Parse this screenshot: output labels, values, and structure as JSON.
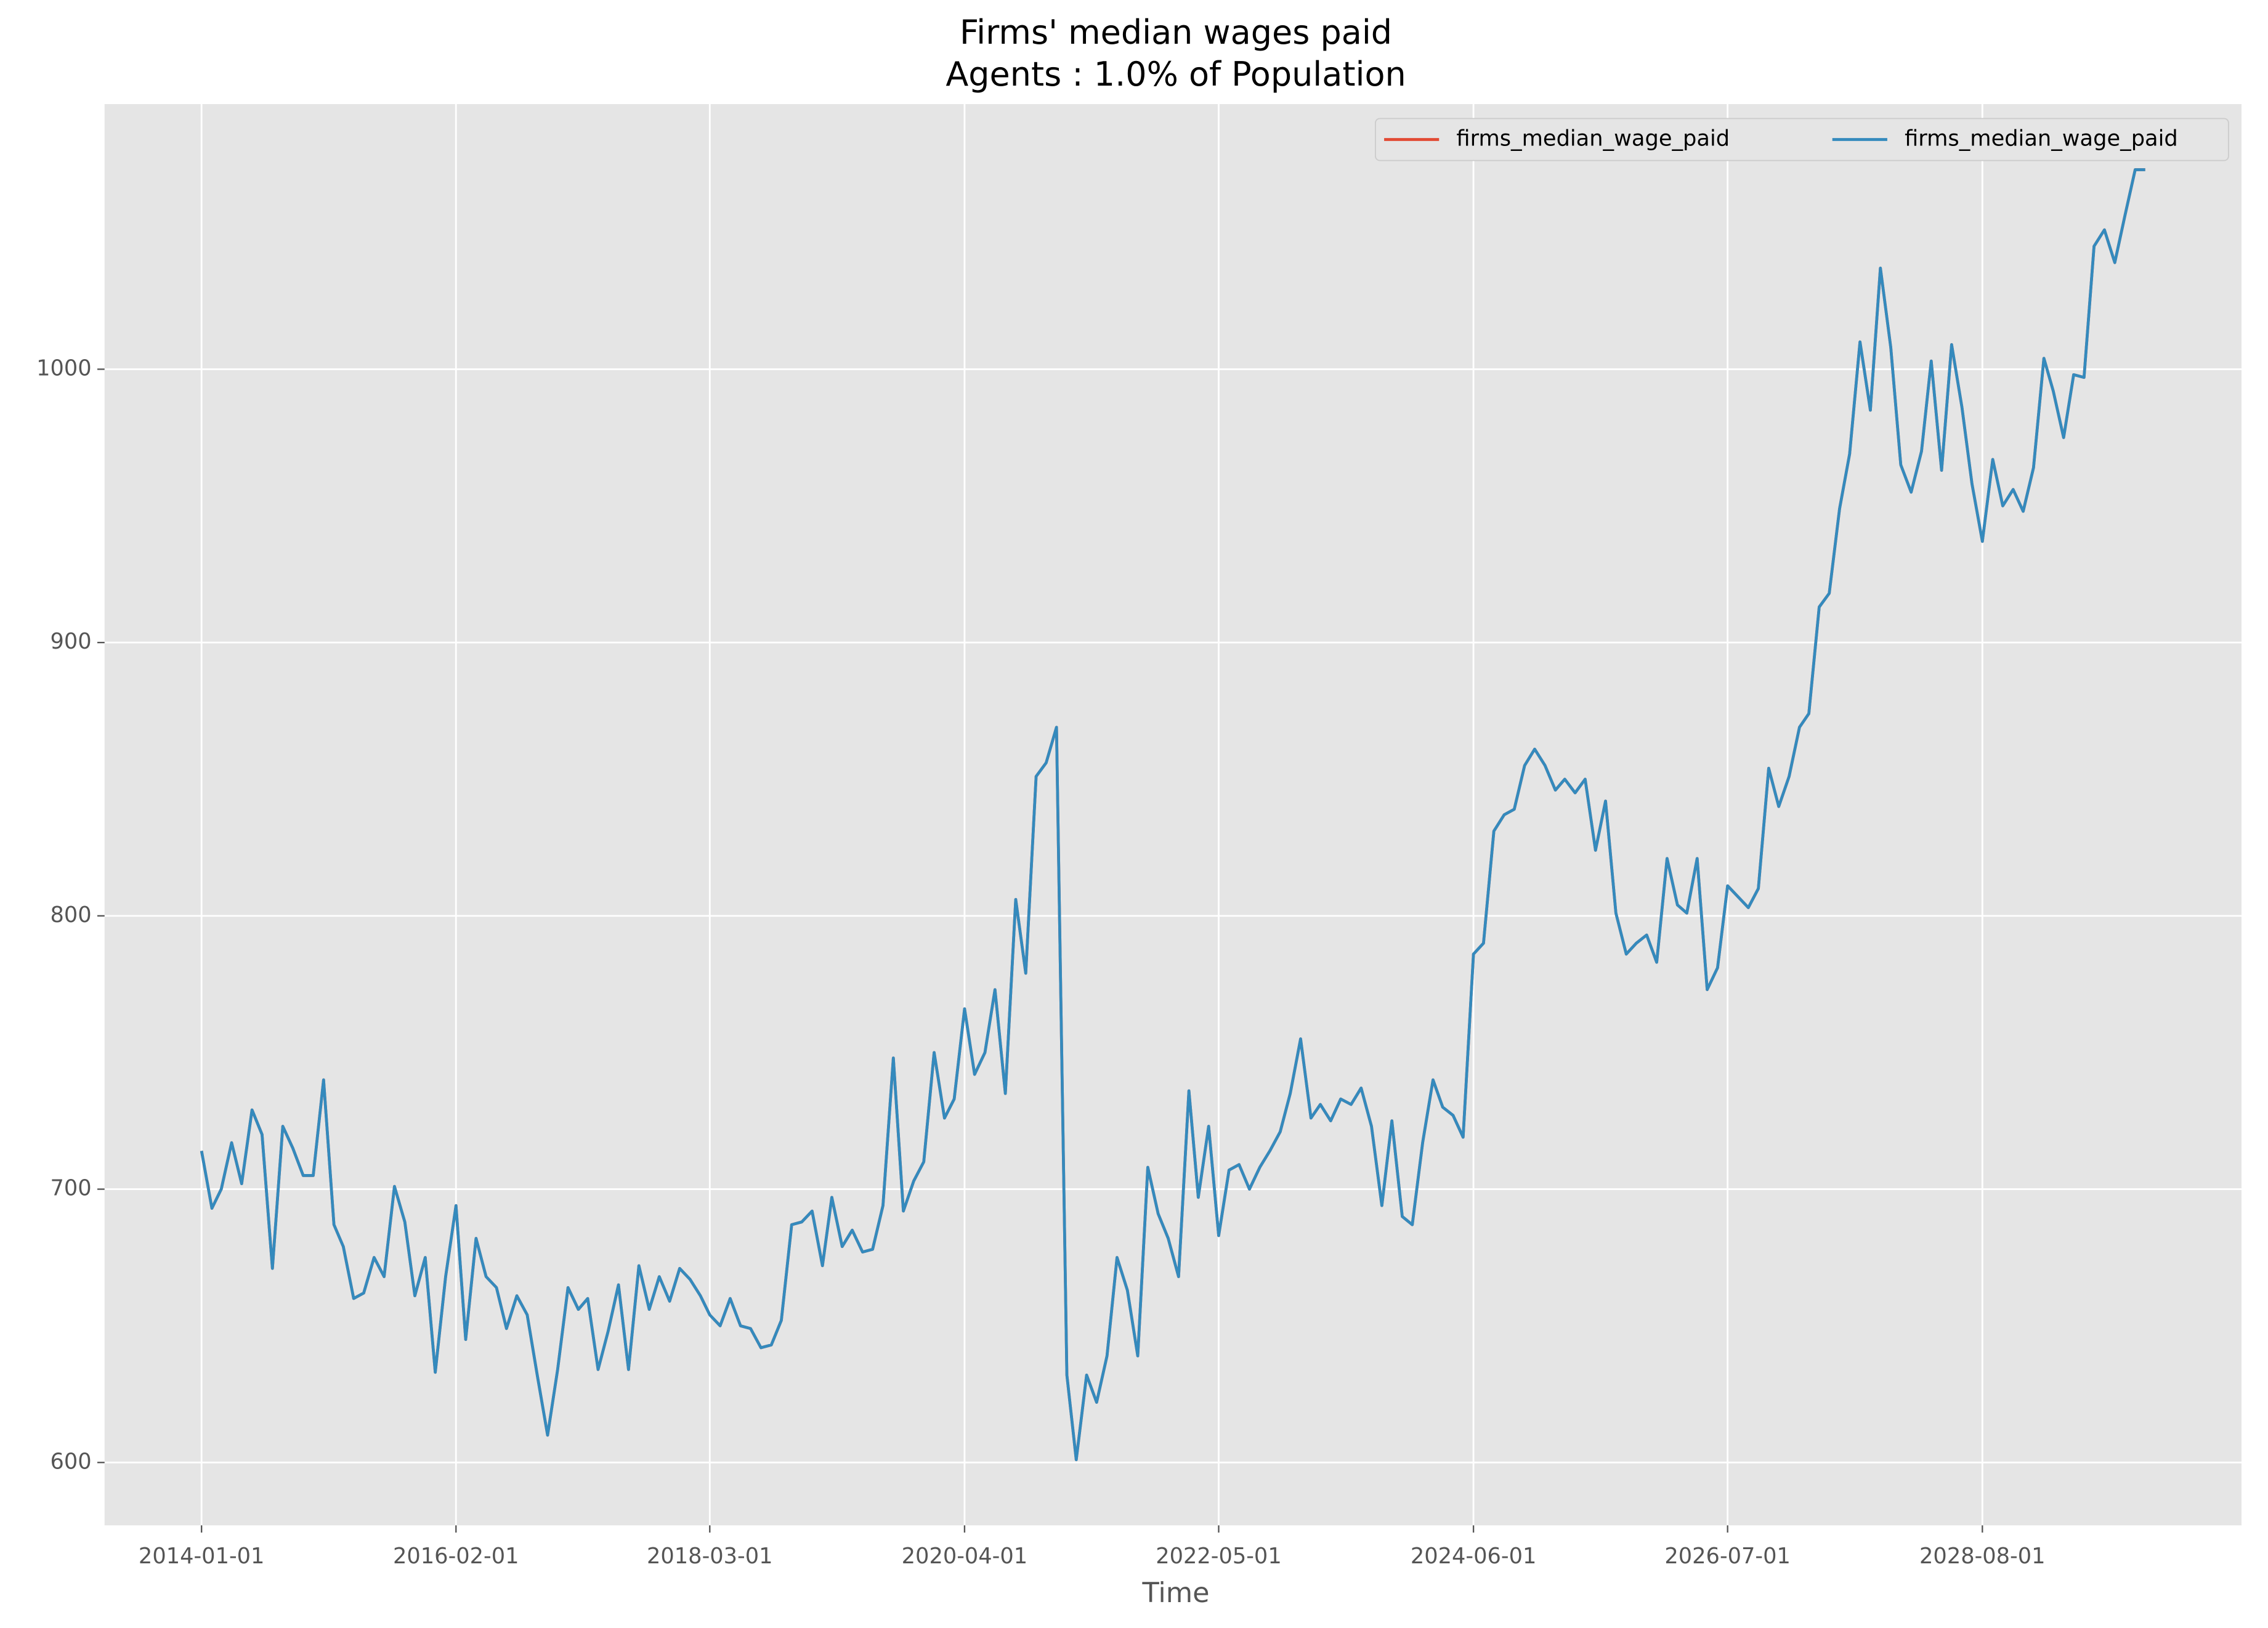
{
  "chart_data": {
    "type": "line",
    "title": "Firms' median wages paid",
    "subtitle": "Agents : 1.0% of Population",
    "x_label": "Time",
    "grid": true,
    "legend": "upper right",
    "xlim": [
      "2013-03-17",
      "2030-09-15"
    ],
    "xticks": [
      "2014-01-01",
      "2016-02-01",
      "2018-03-01",
      "2020-04-01",
      "2022-05-01",
      "2024-06-01",
      "2026-07-01",
      "2028-08-01"
    ],
    "ylim": [
      577,
      1097
    ],
    "yticks": [
      600,
      700,
      800,
      900,
      1000
    ],
    "x": [
      "2014-01-01",
      "2014-02-01",
      "2014-03-01",
      "2014-04-01",
      "2014-05-01",
      "2014-06-01",
      "2014-07-01",
      "2014-08-01",
      "2014-09-01",
      "2014-10-01",
      "2014-11-01",
      "2014-12-01",
      "2015-01-01",
      "2015-02-01",
      "2015-03-01",
      "2015-04-01",
      "2015-05-01",
      "2015-06-01",
      "2015-07-01",
      "2015-08-01",
      "2015-09-01",
      "2015-10-01",
      "2015-11-01",
      "2015-12-01",
      "2016-01-01",
      "2016-02-01",
      "2016-03-01",
      "2016-04-01",
      "2016-05-01",
      "2016-06-01",
      "2016-07-01",
      "2016-08-01",
      "2016-09-01",
      "2016-10-01",
      "2016-11-01",
      "2016-12-01",
      "2017-01-01",
      "2017-02-01",
      "2017-03-01",
      "2017-04-01",
      "2017-05-01",
      "2017-06-01",
      "2017-07-01",
      "2017-08-01",
      "2017-09-01",
      "2017-10-01",
      "2017-11-01",
      "2017-12-01",
      "2018-01-01",
      "2018-02-01",
      "2018-03-01",
      "2018-04-01",
      "2018-05-01",
      "2018-06-01",
      "2018-07-01",
      "2018-08-01",
      "2018-09-01",
      "2018-10-01",
      "2018-11-01",
      "2018-12-01",
      "2019-01-01",
      "2019-02-01",
      "2019-03-01",
      "2019-04-01",
      "2019-05-01",
      "2019-06-01",
      "2019-07-01",
      "2019-08-01",
      "2019-09-01",
      "2019-10-01",
      "2019-11-01",
      "2019-12-01",
      "2020-01-01",
      "2020-02-01",
      "2020-03-01",
      "2020-04-01",
      "2020-05-01",
      "2020-06-01",
      "2020-07-01",
      "2020-08-01",
      "2020-09-01",
      "2020-10-01",
      "2020-11-01",
      "2020-12-01",
      "2021-01-01",
      "2021-02-01",
      "2021-03-01",
      "2021-04-01",
      "2021-05-01",
      "2021-06-01",
      "2021-07-01",
      "2021-08-01",
      "2021-09-01",
      "2021-10-01",
      "2021-11-01",
      "2021-12-01",
      "2022-01-01",
      "2022-02-01",
      "2022-03-01",
      "2022-04-01",
      "2022-05-01",
      "2022-06-01",
      "2022-07-01",
      "2022-08-01",
      "2022-09-01",
      "2022-10-01",
      "2022-11-01",
      "2022-12-01",
      "2023-01-01",
      "2023-02-01",
      "2023-03-01",
      "2023-04-01",
      "2023-05-01",
      "2023-06-01",
      "2023-07-01",
      "2023-08-01",
      "2023-09-01",
      "2023-10-01",
      "2023-11-01",
      "2023-12-01",
      "2024-01-01",
      "2024-02-01",
      "2024-03-01",
      "2024-04-01",
      "2024-05-01",
      "2024-06-01",
      "2024-07-01",
      "2024-08-01",
      "2024-09-01",
      "2024-10-01",
      "2024-11-01",
      "2024-12-01",
      "2025-01-01",
      "2025-02-01",
      "2025-03-01",
      "2025-04-01",
      "2025-05-01",
      "2025-06-01",
      "2025-07-01",
      "2025-08-01",
      "2025-09-01",
      "2025-10-01",
      "2025-11-01",
      "2025-12-01",
      "2026-01-01",
      "2026-02-01",
      "2026-03-01",
      "2026-04-01",
      "2026-05-01",
      "2026-06-01",
      "2026-07-01",
      "2026-08-01",
      "2026-09-01",
      "2026-10-01",
      "2026-11-01",
      "2026-12-01",
      "2027-01-01",
      "2027-02-01",
      "2027-03-01",
      "2027-04-01",
      "2027-05-01",
      "2027-06-01",
      "2027-07-01",
      "2027-08-01",
      "2027-09-01",
      "2027-10-01",
      "2027-11-01",
      "2027-12-01",
      "2028-01-01",
      "2028-02-01",
      "2028-03-01",
      "2028-04-01",
      "2028-05-01",
      "2028-06-01",
      "2028-07-01",
      "2028-08-01",
      "2028-09-01",
      "2028-10-01",
      "2028-11-01",
      "2028-12-01",
      "2029-01-01",
      "2029-02-01",
      "2029-03-01",
      "2029-04-01",
      "2029-05-01",
      "2029-06-01",
      "2029-07-01",
      "2029-08-01",
      "2029-09-01",
      "2029-10-01",
      "2029-11-01",
      "2029-12-01"
    ],
    "series": [
      {
        "name": "firms_median_wage_paid",
        "color": "#e24a33",
        "values": [
          714,
          693,
          700,
          717,
          702,
          729,
          720,
          671,
          723,
          715,
          705,
          705,
          740,
          687,
          679,
          660,
          662,
          675,
          668,
          701,
          688,
          661,
          675,
          633,
          668,
          694,
          645,
          682,
          668,
          664,
          649,
          661,
          654,
          632,
          610,
          634,
          664,
          656,
          660,
          634,
          648,
          665,
          634,
          672,
          656,
          668,
          659,
          671,
          667,
          661,
          654,
          650,
          660,
          650,
          649,
          642,
          643,
          652,
          687,
          688,
          692,
          672,
          697,
          679,
          685,
          677,
          678,
          694,
          748,
          692,
          703,
          710,
          750,
          726,
          733,
          766,
          742,
          750,
          773,
          735,
          806,
          779,
          851,
          856,
          869,
          632,
          601,
          632,
          622,
          639,
          675,
          663,
          639,
          708,
          691,
          682,
          668,
          736,
          697,
          723,
          683,
          707,
          709,
          700,
          708,
          714,
          721,
          735,
          755,
          726,
          731,
          725,
          733,
          731,
          737,
          723,
          694,
          725,
          690,
          687,
          717,
          740,
          730,
          727,
          719,
          786,
          790,
          831,
          837,
          839,
          855,
          861,
          855,
          846,
          850,
          845,
          850,
          824,
          842,
          801,
          786,
          790,
          793,
          783,
          821,
          804,
          801,
          821,
          773,
          781,
          811,
          807,
          803,
          810,
          854,
          840,
          851,
          869,
          874,
          913,
          918,
          949,
          969,
          1010,
          985,
          1037,
          1008,
          965,
          955,
          970,
          1003,
          963,
          1009,
          986,
          958,
          937,
          967,
          950,
          956,
          948,
          964,
          1004,
          992,
          975,
          998,
          997,
          1045,
          1051,
          1039,
          1056,
          1073,
          1073
        ]
      },
      {
        "name": "firms_median_wage_paid",
        "color": "#348abd",
        "values": [
          714,
          693,
          700,
          717,
          702,
          729,
          720,
          671,
          723,
          715,
          705,
          705,
          740,
          687,
          679,
          660,
          662,
          675,
          668,
          701,
          688,
          661,
          675,
          633,
          668,
          694,
          645,
          682,
          668,
          664,
          649,
          661,
          654,
          632,
          610,
          634,
          664,
          656,
          660,
          634,
          648,
          665,
          634,
          672,
          656,
          668,
          659,
          671,
          667,
          661,
          654,
          650,
          660,
          650,
          649,
          642,
          643,
          652,
          687,
          688,
          692,
          672,
          697,
          679,
          685,
          677,
          678,
          694,
          748,
          692,
          703,
          710,
          750,
          726,
          733,
          766,
          742,
          750,
          773,
          735,
          806,
          779,
          851,
          856,
          869,
          632,
          601,
          632,
          622,
          639,
          675,
          663,
          639,
          708,
          691,
          682,
          668,
          736,
          697,
          723,
          683,
          707,
          709,
          700,
          708,
          714,
          721,
          735,
          755,
          726,
          731,
          725,
          733,
          731,
          737,
          723,
          694,
          725,
          690,
          687,
          717,
          740,
          730,
          727,
          719,
          786,
          790,
          831,
          837,
          839,
          855,
          861,
          855,
          846,
          850,
          845,
          850,
          824,
          842,
          801,
          786,
          790,
          793,
          783,
          821,
          804,
          801,
          821,
          773,
          781,
          811,
          807,
          803,
          810,
          854,
          840,
          851,
          869,
          874,
          913,
          918,
          949,
          969,
          1010,
          985,
          1037,
          1008,
          965,
          955,
          970,
          1003,
          963,
          1009,
          986,
          958,
          937,
          967,
          950,
          956,
          948,
          964,
          1004,
          992,
          975,
          998,
          997,
          1045,
          1051,
          1039,
          1056,
          1073,
          1073
        ]
      }
    ]
  }
}
